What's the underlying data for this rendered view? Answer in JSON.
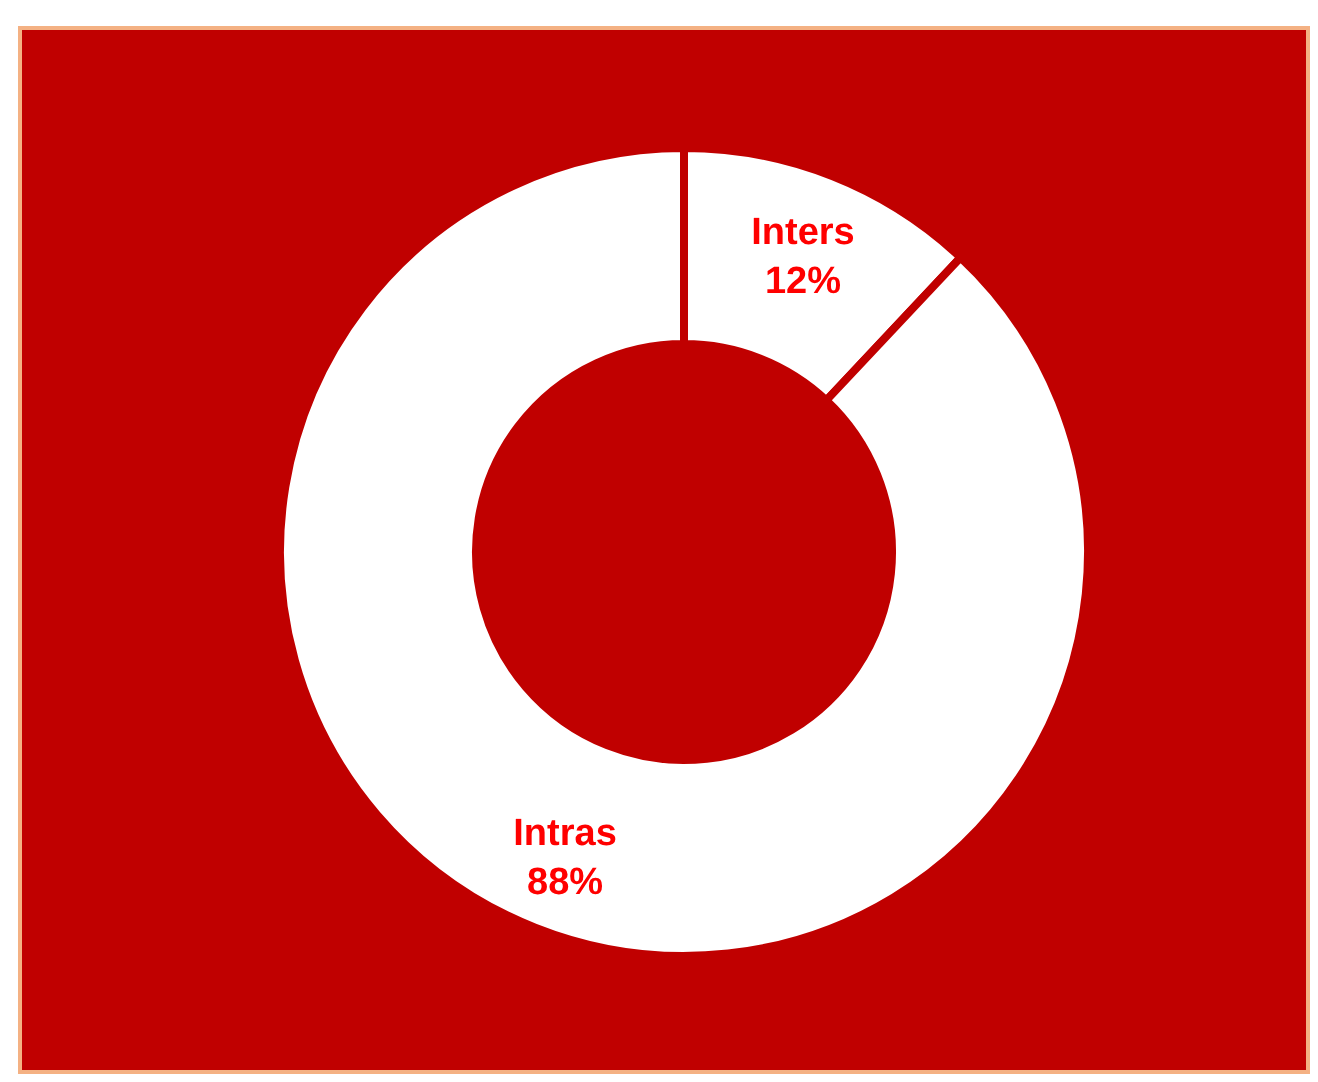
{
  "chart_data": {
    "type": "donut",
    "categories": [
      "Inters",
      "Intras"
    ],
    "values": [
      12,
      88
    ],
    "colors": [
      "#ffffff",
      "#ffffff"
    ],
    "value_labels": [
      "12%",
      "88%"
    ]
  }
}
